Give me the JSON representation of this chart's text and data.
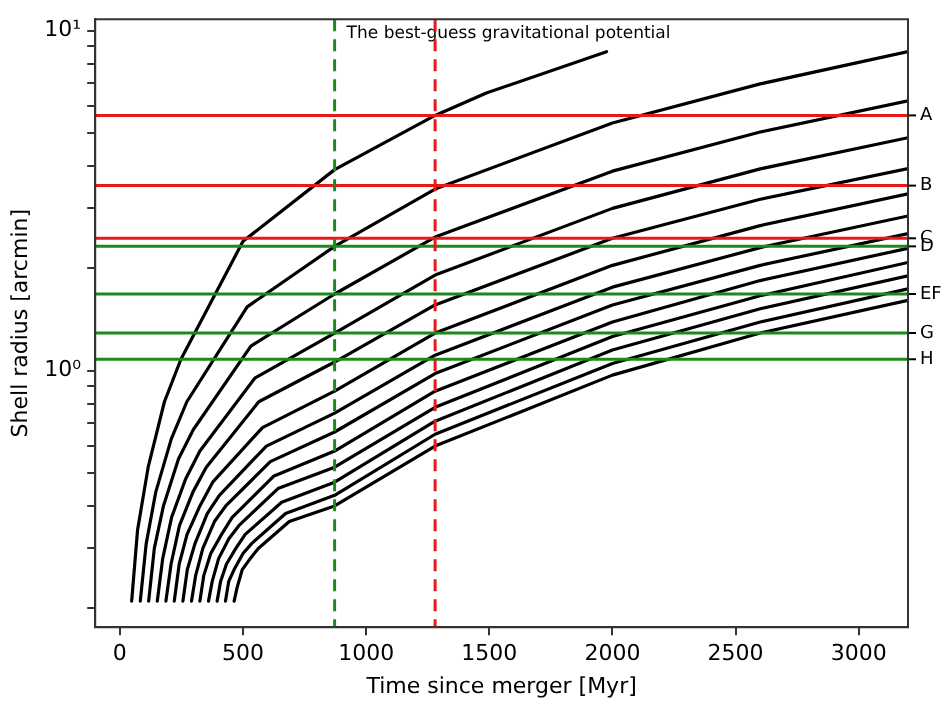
{
  "chart_data": {
    "type": "line",
    "xlabel": "Time since merger [Myr]",
    "ylabel": "Shell radius [arcmin]",
    "log": "y",
    "grid": false,
    "legend": false,
    "marker": "none",
    "line_style": "solid",
    "xlim": [
      -100,
      3200
    ],
    "xticks": [
      0,
      500,
      1000,
      1500,
      2000,
      2500,
      3000
    ],
    "ylim": [
      0.176,
      10.8
    ],
    "yticks": [
      {
        "value": 0.2,
        "label": null
      },
      {
        "value": 0.3,
        "label": null
      },
      {
        "value": 0.4,
        "label": null
      },
      {
        "value": 0.5,
        "label": null
      },
      {
        "value": 0.6,
        "label": null
      },
      {
        "value": 0.7,
        "label": null
      },
      {
        "value": 0.8,
        "label": null
      },
      {
        "value": 0.9,
        "label": null
      },
      {
        "value": 1,
        "label": "10⁰"
      },
      {
        "value": 2,
        "label": null
      },
      {
        "value": 3,
        "label": null
      },
      {
        "value": 4,
        "label": null
      },
      {
        "value": 5,
        "label": null
      },
      {
        "value": 6,
        "label": null
      },
      {
        "value": 7,
        "label": null
      },
      {
        "value": 8,
        "label": null
      },
      {
        "value": 9,
        "label": null
      },
      {
        "value": 10,
        "label": "10¹"
      }
    ],
    "series": [
      {
        "color": "#000000",
        "x": [
          48,
          72,
          115,
          181,
          248,
          500,
          872,
          1280,
          1488,
          1976
        ],
        "values": [
          0.21,
          0.34,
          0.52,
          0.81,
          1.08,
          2.4,
          3.9,
          5.63,
          6.55,
          8.67
        ]
      },
      {
        "color": "#000000",
        "x": [
          83,
          107,
          146,
          209,
          272,
          517,
          872,
          1280,
          2000,
          2600,
          3200
        ],
        "values": [
          0.21,
          0.31,
          0.44,
          0.63,
          0.81,
          1.54,
          2.32,
          3.42,
          5.35,
          6.97,
          8.67
        ]
      },
      {
        "color": "#000000",
        "x": [
          117,
          140,
          177,
          238,
          298,
          532,
          872,
          1280,
          2000,
          2600,
          3200
        ],
        "values": [
          0.21,
          0.3,
          0.4,
          0.55,
          0.67,
          1.18,
          1.68,
          2.47,
          3.86,
          5.03,
          6.21
        ]
      },
      {
        "color": "#000000",
        "x": [
          152,
          174,
          210,
          267,
          325,
          548,
          872,
          1280,
          2000,
          2600,
          3200
        ],
        "values": [
          0.21,
          0.28,
          0.37,
          0.48,
          0.58,
          0.95,
          1.29,
          1.91,
          3.0,
          3.92,
          4.84
        ]
      },
      {
        "color": "#000000",
        "x": [
          187,
          208,
          242,
          297,
          351,
          564,
          872,
          1280,
          2000,
          2600,
          3200
        ],
        "values": [
          0.21,
          0.27,
          0.35,
          0.44,
          0.52,
          0.81,
          1.06,
          1.56,
          2.45,
          3.19,
          3.93
        ]
      },
      {
        "color": "#000000",
        "x": [
          221,
          241,
          273,
          325,
          377,
          579,
          872,
          1280,
          2000,
          2600,
          3200
        ],
        "values": [
          0.21,
          0.27,
          0.33,
          0.4,
          0.47,
          0.68,
          0.87,
          1.29,
          2.04,
          2.67,
          3.31
        ]
      },
      {
        "color": "#000000",
        "x": [
          256,
          274,
          305,
          355,
          404,
          595,
          872,
          1280,
          2000,
          2600,
          3200
        ],
        "values": [
          0.21,
          0.26,
          0.31,
          0.38,
          0.43,
          0.6,
          0.75,
          1.11,
          1.76,
          2.3,
          2.85
        ]
      },
      {
        "color": "#000000",
        "x": [
          291,
          308,
          337,
          384,
          430,
          611,
          872,
          1280,
          2000,
          2600,
          3200
        ],
        "values": [
          0.21,
          0.25,
          0.3,
          0.36,
          0.4,
          0.54,
          0.66,
          0.98,
          1.56,
          2.04,
          2.53
        ]
      },
      {
        "color": "#000000",
        "x": [
          325,
          341,
          369,
          413,
          456,
          626,
          872,
          1280,
          2000,
          2600,
          3200
        ],
        "values": [
          0.21,
          0.25,
          0.29,
          0.33,
          0.37,
          0.49,
          0.58,
          0.87,
          1.39,
          1.84,
          2.29
        ]
      },
      {
        "color": "#000000",
        "x": [
          360,
          375,
          401,
          442,
          483,
          642,
          872,
          1280,
          2000,
          2600,
          3200
        ],
        "values": [
          0.21,
          0.24,
          0.28,
          0.32,
          0.35,
          0.45,
          0.52,
          0.78,
          1.26,
          1.66,
          2.08
        ]
      },
      {
        "color": "#000000",
        "x": [
          395,
          409,
          433,
          471,
          509,
          657,
          872,
          1280,
          2000,
          2600,
          3200
        ],
        "values": [
          0.21,
          0.24,
          0.27,
          0.3,
          0.33,
          0.41,
          0.47,
          0.71,
          1.15,
          1.52,
          1.9
        ]
      },
      {
        "color": "#000000",
        "x": [
          429,
          442,
          464,
          500,
          535,
          673,
          872,
          1280,
          2000,
          2600,
          3200
        ],
        "values": [
          0.21,
          0.24,
          0.26,
          0.29,
          0.31,
          0.38,
          0.43,
          0.65,
          1.05,
          1.39,
          1.74
        ]
      },
      {
        "color": "#000000",
        "x": [
          464,
          476,
          497,
          529,
          562,
          688,
          872,
          1280,
          2000,
          2600,
          3200
        ],
        "values": [
          0.21,
          0.23,
          0.26,
          0.28,
          0.3,
          0.36,
          0.4,
          0.6,
          0.97,
          1.29,
          1.61
        ]
      }
    ],
    "ref_lines": [
      {
        "axis": "y",
        "value": 5.63,
        "label": "A",
        "color": "#e8191a"
      },
      {
        "axis": "y",
        "value": 3.5,
        "label": "B",
        "color": "#e8191a"
      },
      {
        "axis": "y",
        "value": 2.45,
        "label": "C",
        "color": "#e8191a"
      },
      {
        "axis": "y",
        "value": 2.32,
        "label": "D",
        "color": "#1a8a1a"
      },
      {
        "axis": "y",
        "value": 1.68,
        "label": "EF",
        "color": "#1a8a1a"
      },
      {
        "axis": "y",
        "value": 1.29,
        "label": "G",
        "color": "#1a8a1a"
      },
      {
        "axis": "y",
        "value": 1.08,
        "label": "H",
        "color": "#1a8a1a"
      },
      {
        "axis": "x",
        "value": 872,
        "label": "The best-guess gravitational potential",
        "color": "#1a8a1a",
        "line_style": "dashed"
      },
      {
        "axis": "x",
        "value": 1280,
        "color": "#e8191a",
        "line_style": "dashed"
      }
    ]
  }
}
